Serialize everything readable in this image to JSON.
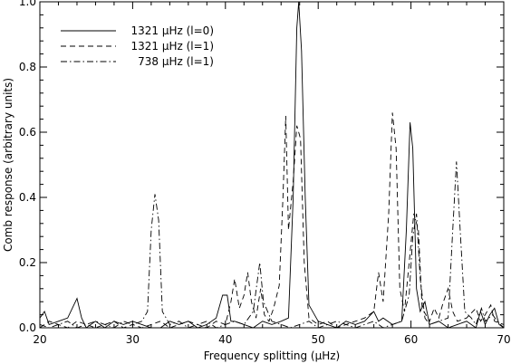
{
  "chart_data": {
    "type": "line",
    "title": "",
    "xlabel": "Frequency splitting (μHz)",
    "ylabel": "Comb response (arbitrary units)",
    "xlim": [
      20,
      70
    ],
    "ylim": [
      0,
      1.0
    ],
    "x_ticks": [
      20,
      30,
      40,
      50,
      60,
      70
    ],
    "y_ticks": [
      0.0,
      0.2,
      0.4,
      0.6,
      0.8,
      1.0
    ],
    "x_tick_labels": [
      "20",
      "30",
      "40",
      "50",
      "60",
      "70"
    ],
    "y_tick_labels": [
      "0.0",
      "0.2",
      "0.4",
      "0.6",
      "0.8",
      "1.0"
    ],
    "grid": false,
    "legend_position": "top-left",
    "series": [
      {
        "name": "1321 μHz (l=0)",
        "style": "solid",
        "points": [
          [
            20,
            0.03
          ],
          [
            20.5,
            0.05
          ],
          [
            21,
            0.01
          ],
          [
            22,
            0.02
          ],
          [
            23,
            0.03
          ],
          [
            23.5,
            0.06
          ],
          [
            24,
            0.09
          ],
          [
            24.5,
            0.03
          ],
          [
            25,
            0.0
          ],
          [
            26,
            0.02
          ],
          [
            27,
            0.0
          ],
          [
            28,
            0.02
          ],
          [
            29,
            0.01
          ],
          [
            30,
            0.02
          ],
          [
            31,
            0.01
          ],
          [
            32,
            0.0
          ],
          [
            33,
            0.0
          ],
          [
            34,
            0.02
          ],
          [
            35,
            0.01
          ],
          [
            36,
            0.02
          ],
          [
            37,
            0.0
          ],
          [
            38,
            0.01
          ],
          [
            39,
            0.03
          ],
          [
            39.7,
            0.1
          ],
          [
            40.2,
            0.1
          ],
          [
            40.6,
            0.02
          ],
          [
            41,
            0.02
          ],
          [
            42,
            0.01
          ],
          [
            43,
            0.0
          ],
          [
            44,
            0.02
          ],
          [
            45,
            0.01
          ],
          [
            46,
            0.02
          ],
          [
            46.8,
            0.03
          ],
          [
            47.3,
            0.4
          ],
          [
            47.7,
            0.92
          ],
          [
            47.9,
            1.0
          ],
          [
            48.2,
            0.85
          ],
          [
            48.6,
            0.4
          ],
          [
            49,
            0.07
          ],
          [
            50,
            0.02
          ],
          [
            51,
            0.01
          ],
          [
            52,
            0.0
          ],
          [
            53,
            0.02
          ],
          [
            54,
            0.01
          ],
          [
            55,
            0.02
          ],
          [
            56,
            0.05
          ],
          [
            56.5,
            0.02
          ],
          [
            57,
            0.03
          ],
          [
            58,
            0.01
          ],
          [
            59,
            0.02
          ],
          [
            59.5,
            0.3
          ],
          [
            59.9,
            0.63
          ],
          [
            60.2,
            0.55
          ],
          [
            60.6,
            0.12
          ],
          [
            61,
            0.05
          ],
          [
            61.5,
            0.08
          ],
          [
            62,
            0.01
          ],
          [
            63,
            0.02
          ],
          [
            64,
            0.0
          ],
          [
            65,
            0.01
          ],
          [
            66,
            0.02
          ],
          [
            67,
            0.0
          ],
          [
            67.5,
            0.05
          ],
          [
            68,
            0.01
          ],
          [
            68.5,
            0.04
          ],
          [
            69,
            0.06
          ],
          [
            69.5,
            0.01
          ],
          [
            70,
            0.0
          ]
        ]
      },
      {
        "name": "1321 μHz (l=1)",
        "style": "dashed",
        "points": [
          [
            20,
            0.0
          ],
          [
            21,
            0.02
          ],
          [
            22,
            0.01
          ],
          [
            23,
            0.0
          ],
          [
            24,
            0.02
          ],
          [
            25,
            0.01
          ],
          [
            26,
            0.0
          ],
          [
            27,
            0.01
          ],
          [
            28,
            0.02
          ],
          [
            29,
            0.0
          ],
          [
            30,
            0.01
          ],
          [
            31,
            0.0
          ],
          [
            32,
            0.01
          ],
          [
            33,
            0.02
          ],
          [
            34,
            0.0
          ],
          [
            35,
            0.01
          ],
          [
            36,
            0.02
          ],
          [
            37,
            0.01
          ],
          [
            38,
            0.0
          ],
          [
            39,
            0.02
          ],
          [
            40,
            0.01
          ],
          [
            40.6,
            0.08
          ],
          [
            41,
            0.15
          ],
          [
            41.5,
            0.06
          ],
          [
            42,
            0.1
          ],
          [
            42.4,
            0.17
          ],
          [
            42.8,
            0.08
          ],
          [
            43.3,
            0.03
          ],
          [
            43.8,
            0.12
          ],
          [
            44.2,
            0.04
          ],
          [
            44.7,
            0.02
          ],
          [
            45.2,
            0.06
          ],
          [
            45.8,
            0.13
          ],
          [
            46.2,
            0.4
          ],
          [
            46.5,
            0.65
          ],
          [
            46.8,
            0.3
          ],
          [
            47.3,
            0.45
          ],
          [
            47.7,
            0.62
          ],
          [
            48.1,
            0.58
          ],
          [
            48.5,
            0.2
          ],
          [
            49,
            0.03
          ],
          [
            50,
            0.01
          ],
          [
            51,
            0.02
          ],
          [
            52,
            0.0
          ],
          [
            53,
            0.01
          ],
          [
            54,
            0.02
          ],
          [
            55,
            0.03
          ],
          [
            56,
            0.05
          ],
          [
            56.5,
            0.17
          ],
          [
            57,
            0.08
          ],
          [
            57.6,
            0.35
          ],
          [
            58,
            0.66
          ],
          [
            58.4,
            0.55
          ],
          [
            58.8,
            0.12
          ],
          [
            59.3,
            0.05
          ],
          [
            59.8,
            0.2
          ],
          [
            60.3,
            0.35
          ],
          [
            60.8,
            0.3
          ],
          [
            61.2,
            0.06
          ],
          [
            62,
            0.02
          ],
          [
            62.5,
            0.06
          ],
          [
            63,
            0.03
          ],
          [
            63.5,
            0.08
          ],
          [
            64,
            0.12
          ],
          [
            64.5,
            0.05
          ],
          [
            65,
            0.02
          ],
          [
            66,
            0.03
          ],
          [
            67,
            0.06
          ],
          [
            67.5,
            0.02
          ],
          [
            68,
            0.04
          ],
          [
            68.6,
            0.07
          ],
          [
            69,
            0.02
          ],
          [
            70,
            0.01
          ]
        ]
      },
      {
        "name": "738 μHz (l=1)",
        "style": "dashdot",
        "points": [
          [
            20,
            0.01
          ],
          [
            21,
            0.0
          ],
          [
            22,
            0.01
          ],
          [
            23,
            0.02
          ],
          [
            24,
            0.0
          ],
          [
            25,
            0.01
          ],
          [
            26,
            0.02
          ],
          [
            27,
            0.01
          ],
          [
            28,
            0.0
          ],
          [
            29,
            0.02
          ],
          [
            30,
            0.01
          ],
          [
            31,
            0.02
          ],
          [
            31.6,
            0.05
          ],
          [
            32,
            0.3
          ],
          [
            32.4,
            0.41
          ],
          [
            32.8,
            0.33
          ],
          [
            33.2,
            0.05
          ],
          [
            34,
            0.01
          ],
          [
            35,
            0.02
          ],
          [
            36,
            0.0
          ],
          [
            37,
            0.01
          ],
          [
            38,
            0.02
          ],
          [
            39,
            0.0
          ],
          [
            40,
            0.01
          ],
          [
            41,
            0.02
          ],
          [
            42,
            0.01
          ],
          [
            43,
            0.05
          ],
          [
            43.7,
            0.2
          ],
          [
            44.1,
            0.08
          ],
          [
            45,
            0.02
          ],
          [
            46,
            0.01
          ],
          [
            47,
            0.0
          ],
          [
            48,
            0.01
          ],
          [
            49,
            0.02
          ],
          [
            50,
            0.0
          ],
          [
            51,
            0.01
          ],
          [
            52,
            0.02
          ],
          [
            53,
            0.01
          ],
          [
            54,
            0.0
          ],
          [
            55,
            0.01
          ],
          [
            56,
            0.02
          ],
          [
            57,
            0.0
          ],
          [
            58,
            0.01
          ],
          [
            59,
            0.02
          ],
          [
            59.8,
            0.1
          ],
          [
            60.2,
            0.28
          ],
          [
            60.6,
            0.35
          ],
          [
            61,
            0.15
          ],
          [
            61.5,
            0.03
          ],
          [
            62,
            0.01
          ],
          [
            63,
            0.02
          ],
          [
            64,
            0.03
          ],
          [
            64.5,
            0.3
          ],
          [
            64.9,
            0.51
          ],
          [
            65.3,
            0.3
          ],
          [
            65.8,
            0.05
          ],
          [
            66.5,
            0.03
          ],
          [
            67,
            0.01
          ],
          [
            67.6,
            0.06
          ],
          [
            68,
            0.02
          ],
          [
            68.8,
            0.04
          ],
          [
            69.3,
            0.02
          ],
          [
            70,
            0.0
          ]
        ]
      }
    ]
  }
}
